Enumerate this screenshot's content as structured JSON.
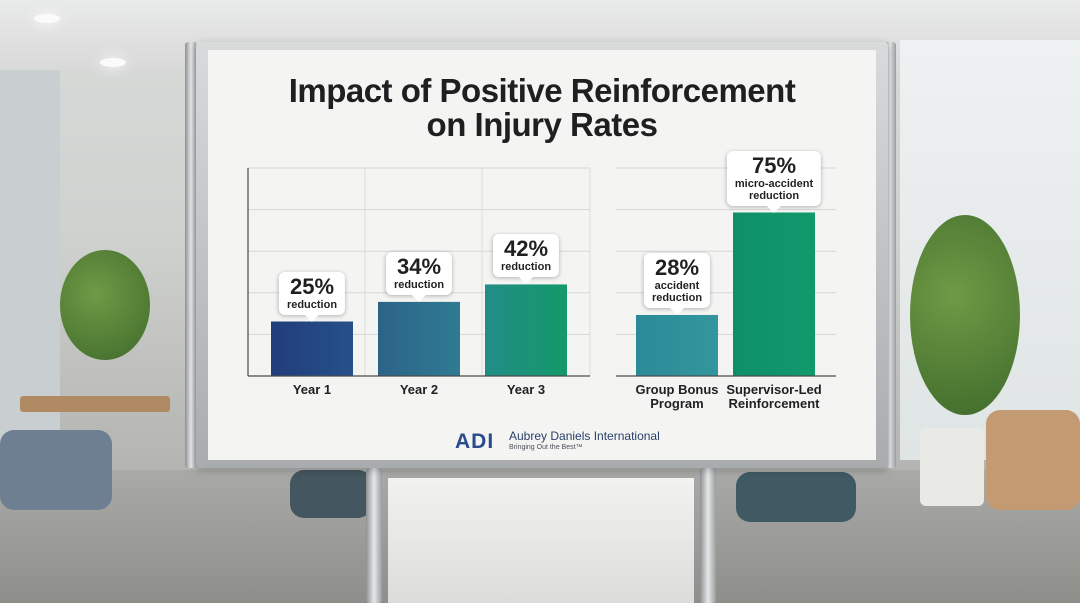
{
  "title_line1": "Impact of Positive Reinforcement",
  "title_line2": "on Injury Rates",
  "chart_data": [
    {
      "type": "bar",
      "categories": [
        "Year 1",
        "Year 2",
        "Year 3"
      ],
      "values": [
        25,
        34,
        42
      ],
      "data_labels": [
        {
          "value": "25%",
          "caption": "reduction"
        },
        {
          "value": "34%",
          "caption": "reduction"
        },
        {
          "value": "42%",
          "caption": "reduction"
        }
      ],
      "bar_colors": [
        "#23437f",
        "#2e6f8c",
        "#17966a"
      ],
      "grid": true
    },
    {
      "type": "bar",
      "categories": [
        "Group Bonus Program",
        "Supervisor-Led Reinforcement"
      ],
      "category_lines": [
        [
          "Group Bonus",
          "Program"
        ],
        [
          "Supervisor-Led",
          "Reinforcement"
        ]
      ],
      "values": [
        28,
        75
      ],
      "data_labels": [
        {
          "value": "28%",
          "caption_lines": [
            "accident",
            "reduction"
          ]
        },
        {
          "value": "75%",
          "caption_lines": [
            "micro-accident",
            "reduction"
          ]
        }
      ],
      "bar_colors": [
        "#2f8f99",
        "#0f9368"
      ],
      "grid": true
    }
  ],
  "logo": {
    "mark": "ADI",
    "name": "Aubrey Daniels International",
    "tagline": "Bringing Out the Best™"
  }
}
